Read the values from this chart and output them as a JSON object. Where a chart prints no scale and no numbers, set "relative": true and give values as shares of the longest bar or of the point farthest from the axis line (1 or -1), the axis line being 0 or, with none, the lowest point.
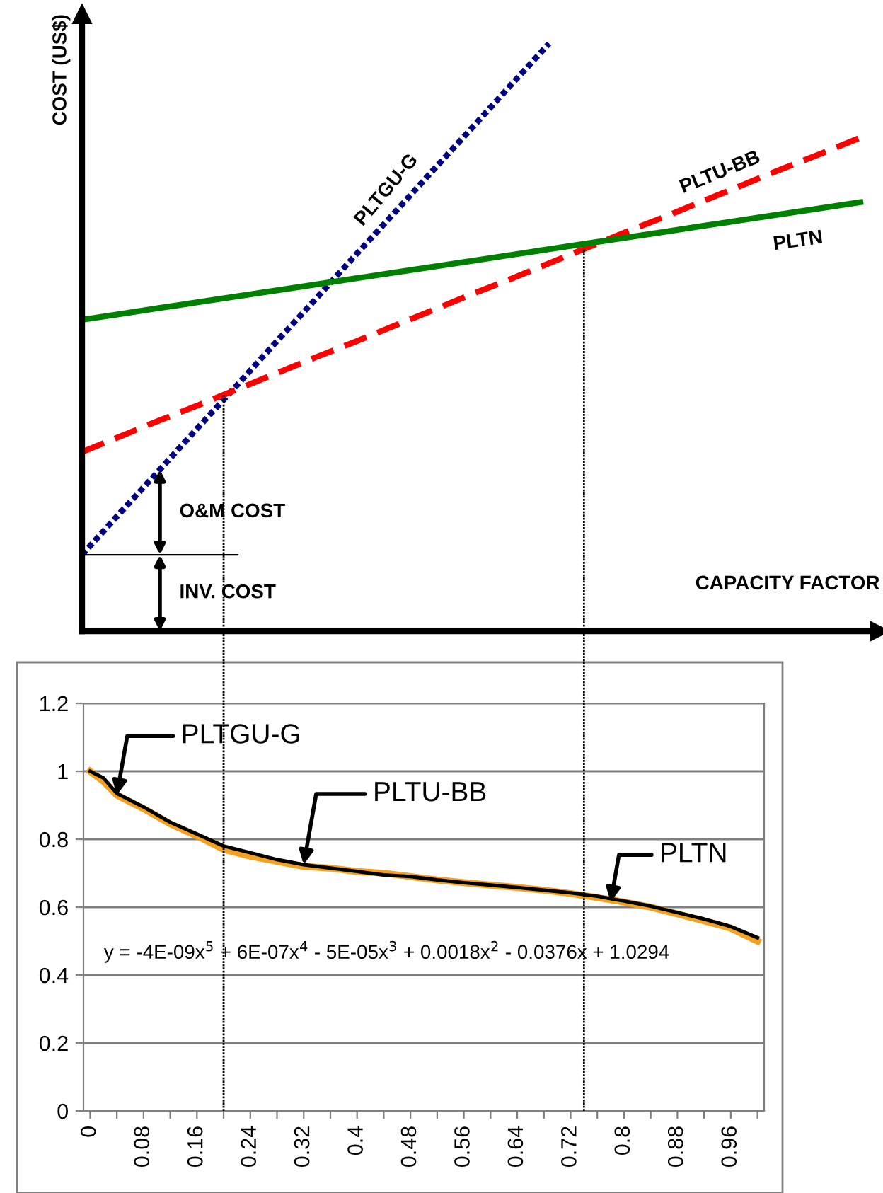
{
  "chart_data": [
    {
      "type": "line",
      "relative": true,
      "xlabel": "CAPACITY FACTOR",
      "ylabel": "COST (US$)",
      "categories": [
        null,
        null,
        null,
        null,
        null,
        null,
        null,
        null,
        null,
        null,
        null,
        null,
        null,
        null,
        null,
        null,
        null,
        null,
        null,
        null,
        null
      ],
      "series": [
        {
          "name": "PLTGU-G",
          "color": "#000080",
          "line_style": "dotted",
          "values": [
            0.13,
            0.203,
            0.275,
            0.348,
            0.42,
            0.493,
            0.565,
            0.638,
            0.71,
            0.783,
            0.855,
            0.928,
            1.0,
            null,
            null,
            null,
            null,
            null,
            null,
            null,
            null
          ]
        },
        {
          "name": "PLTU-BB",
          "color": "#ff0000",
          "line_style": "dashed",
          "values": [
            0.305,
            0.332,
            0.359,
            0.385,
            0.412,
            0.439,
            0.466,
            0.492,
            0.519,
            0.546,
            0.573,
            0.599,
            0.626,
            0.653,
            0.68,
            0.706,
            0.733,
            0.76,
            0.787,
            0.813,
            0.84
          ]
        },
        {
          "name": "PLTN",
          "color": "#008000",
          "line_style": "solid",
          "values": [
            0.53,
            0.54,
            0.55,
            0.56,
            0.57,
            0.58,
            0.59,
            0.6,
            0.61,
            0.62,
            0.63,
            0.64,
            0.65,
            0.66,
            0.67,
            0.68,
            0.69,
            0.7,
            0.71,
            0.72,
            0.73
          ]
        }
      ],
      "annotations": [
        "O&M COST",
        "INV. COST"
      ]
    },
    {
      "type": "line",
      "xlim": [
        -0.01,
        1.01
      ],
      "ylim": [
        0,
        1.2
      ],
      "yticks": [
        0,
        0.2,
        0.4,
        0.6,
        0.8,
        1,
        1.2
      ],
      "xticks": [
        0,
        {
          "value": 0.04,
          "label": null
        },
        0.08,
        {
          "value": 0.12,
          "label": null
        },
        0.16,
        {
          "value": 0.2,
          "label": null
        },
        0.24,
        {
          "value": 0.28,
          "label": null
        },
        0.32,
        {
          "value": 0.36,
          "label": null
        },
        0.4,
        {
          "value": 0.44,
          "label": null
        },
        0.48,
        {
          "value": 0.52,
          "label": null
        },
        0.56,
        {
          "value": 0.6,
          "label": null
        },
        0.64,
        {
          "value": 0.68,
          "label": null
        },
        0.72,
        {
          "value": 0.76,
          "label": null
        },
        0.8,
        {
          "value": 0.84,
          "label": null
        },
        0.88,
        {
          "value": 0.92,
          "label": null
        },
        0.96,
        {
          "value": 1.0,
          "label": null
        }
      ],
      "grid": "y",
      "series": [
        {
          "color": "#f5a020",
          "x": [
            0,
            0.02,
            0.04,
            0.08,
            0.12,
            0.16,
            0.2,
            0.24,
            0.28,
            0.32,
            0.36,
            0.4,
            0.44,
            0.48,
            0.52,
            0.56,
            0.6,
            0.64,
            0.68,
            0.72,
            0.76,
            0.8,
            0.84,
            0.88,
            0.92,
            0.96,
            1.0
          ],
          "values": [
            1.0,
            0.97,
            0.93,
            0.89,
            0.845,
            0.81,
            0.77,
            0.75,
            0.735,
            0.72,
            0.715,
            0.705,
            0.7,
            0.69,
            0.68,
            0.672,
            0.665,
            0.658,
            0.65,
            0.64,
            0.628,
            0.615,
            0.6,
            0.58,
            0.56,
            0.538,
            0.5
          ]
        },
        {
          "color": "#000000",
          "x": [
            0,
            0.02,
            0.04,
            0.08,
            0.12,
            0.16,
            0.2,
            0.24,
            0.28,
            0.32,
            0.36,
            0.4,
            0.44,
            0.48,
            0.52,
            0.56,
            0.6,
            0.64,
            0.68,
            0.72,
            0.76,
            0.8,
            0.84,
            0.88,
            0.92,
            0.96,
            1.0
          ],
          "values": [
            1.0,
            0.98,
            0.935,
            0.895,
            0.85,
            0.815,
            0.78,
            0.76,
            0.74,
            0.725,
            0.715,
            0.705,
            0.695,
            0.69,
            0.68,
            0.672,
            0.665,
            0.658,
            0.65,
            0.642,
            0.632,
            0.618,
            0.603,
            0.584,
            0.565,
            0.543,
            0.51
          ]
        }
      ],
      "ref_lines": [
        {
          "axis": "x",
          "value": 0.2,
          "line_style": "dotted",
          "color": "#000000"
        },
        {
          "axis": "x",
          "value": 0.74,
          "line_style": "dotted",
          "color": "#000000"
        }
      ],
      "annotations": [
        {
          "text": "PLTGU-G",
          "x": 0.04,
          "y": 0.93
        },
        {
          "text": "PLTU-BB",
          "x": 0.32,
          "y": 0.725
        },
        {
          "text": "PLTN",
          "x": 0.78,
          "y": 0.615
        },
        "y = -4E-09x$^{5}$ + 6E-07x$^{4}$ - 5E-05x$^{3}$ + 0.0018x$^{2}$ - 0.0376x + 1.0294"
      ]
    }
  ]
}
